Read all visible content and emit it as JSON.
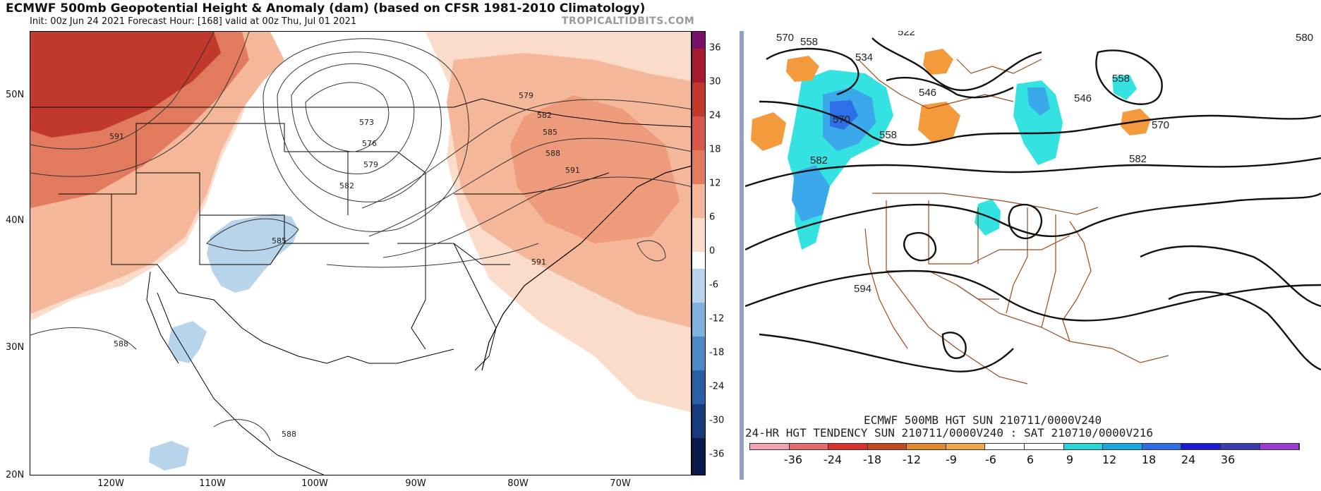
{
  "left": {
    "title": "ECMWF 500mb Geopotential Height & Anomaly (dam) (based on CFSR 1981-2010 Climatology)",
    "subtitle": "Init: 00z Jun 24 2021   Forecast Hour: [168]   valid at 00z Thu, Jul 01 2021",
    "watermark": "TROPICALTIDBITS.COM",
    "lat_labels": [
      "50N",
      "40N",
      "30N",
      "20N"
    ],
    "lon_labels": [
      "120W",
      "110W",
      "100W",
      "90W",
      "80W",
      "70W"
    ],
    "colorbar_labels": [
      "36",
      "30",
      "24",
      "18",
      "12",
      "6",
      "0",
      "-6",
      "-12",
      "-18",
      "-24",
      "-30",
      "-36"
    ],
    "contour_labels": [
      "591",
      "573",
      "576",
      "579",
      "582",
      "579",
      "582",
      "585",
      "588",
      "591",
      "585",
      "591",
      "588",
      "588"
    ],
    "colors": {
      "warm_dark": "#c0392b",
      "warm_mid": "#e27a5e",
      "warm_light": "#f5b79a",
      "warm_pale": "#fbdccb",
      "cool_pale": "#b7d4ea",
      "border": "#000000"
    }
  },
  "right": {
    "contour_labels": [
      "570",
      "558",
      "522",
      "534",
      "546",
      "570",
      "558",
      "582",
      "546",
      "558",
      "570",
      "582",
      "594",
      "580"
    ],
    "label_line1": "ECMWF 500MB HGT SUN 210711/0000V240",
    "label_line2": "24-HR HGT TENDENCY SUN 210711/0000V240 : SAT 210710/0000V216",
    "colorbar_labels": [
      "-36",
      "-24",
      "-18",
      "-12",
      "-9",
      "-6",
      "6",
      "9",
      "12",
      "18",
      "24",
      "36"
    ],
    "colorbar_colors": [
      "#f2a3b3",
      "#e46b6b",
      "#d9322d",
      "#c04a1e",
      "#e08a2a",
      "#f0a84a",
      "#ffffff",
      "#ffffff",
      "#27d6d6",
      "#1aa8e0",
      "#2d6ee6",
      "#1a1ad6",
      "#3b3bb0",
      "#9a3bd6"
    ],
    "colors": {
      "state_lines": "#9a4a1e",
      "contours": "#111111",
      "positive": "#f29a3c",
      "negative_light": "#34e2e2",
      "negative_mid": "#3aa8ea",
      "negative_dark": "#2d6fe6"
    }
  }
}
